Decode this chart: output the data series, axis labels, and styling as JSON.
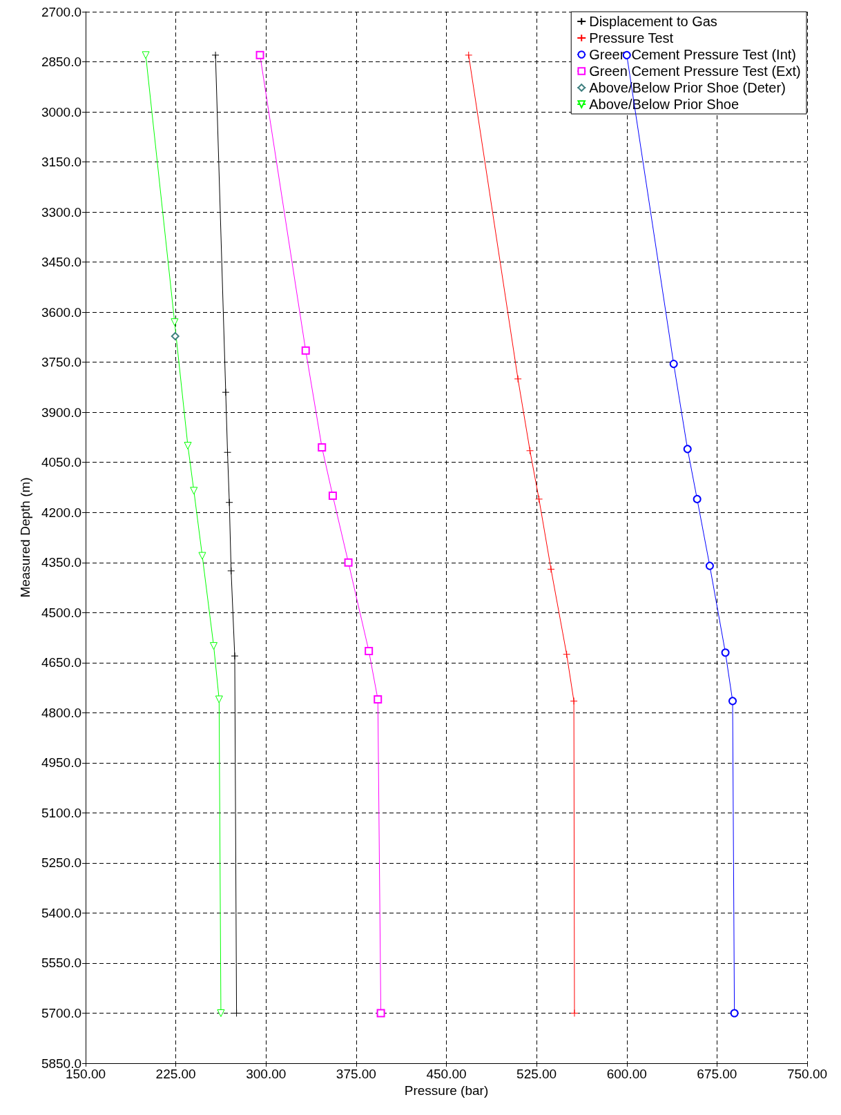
{
  "chart_data": {
    "type": "line",
    "xlabel": "Pressure (bar)",
    "ylabel": "Measured Depth (m)",
    "xlim": [
      150,
      750
    ],
    "xticks": [
      {
        "value": 150,
        "label": "150.00"
      },
      {
        "value": 225,
        "label": "225.00"
      },
      {
        "value": 300,
        "label": "300.00"
      },
      {
        "value": 375,
        "label": "375.00"
      },
      {
        "value": 450,
        "label": "450.00"
      },
      {
        "value": 525,
        "label": "525.00"
      },
      {
        "value": 600,
        "label": "600.00"
      },
      {
        "value": 675,
        "label": "675.00"
      },
      {
        "value": 750,
        "label": "750.00"
      }
    ],
    "ylim": [
      5850,
      2700
    ],
    "yticks": [
      {
        "value": 2700,
        "label": "2700.0"
      },
      {
        "value": 2850,
        "label": "2850.0"
      },
      {
        "value": 3000,
        "label": "3000.0"
      },
      {
        "value": 3150,
        "label": "3150.0"
      },
      {
        "value": 3300,
        "label": "3300.0"
      },
      {
        "value": 3450,
        "label": "3450.0"
      },
      {
        "value": 3600,
        "label": "3600.0"
      },
      {
        "value": 3750,
        "label": "3750.0"
      },
      {
        "value": 3900,
        "label": "3900.0"
      },
      {
        "value": 4050,
        "label": "4050.0"
      },
      {
        "value": 4200,
        "label": "4200.0"
      },
      {
        "value": 4350,
        "label": "4350.0"
      },
      {
        "value": 4500,
        "label": "4500.0"
      },
      {
        "value": 4650,
        "label": "4650.0"
      },
      {
        "value": 4800,
        "label": "4800.0"
      },
      {
        "value": 4950,
        "label": "4950.0"
      },
      {
        "value": 5100,
        "label": "5100.0"
      },
      {
        "value": 5250,
        "label": "5250.0"
      },
      {
        "value": 5400,
        "label": "5400.0"
      },
      {
        "value": 5550,
        "label": "5550.0"
      },
      {
        "value": 5700,
        "label": "5700.0"
      },
      {
        "value": 5850,
        "label": "5850.0"
      }
    ],
    "grid": true,
    "legend": "top right",
    "line_style": "solid",
    "series": [
      {
        "name": "Displacement to Gas",
        "color": "#000000",
        "marker": "cross",
        "x": [
          258,
          266.5,
          268,
          269.5,
          271,
          274,
          275.5
        ],
        "values": [
          2830,
          3840,
          4020,
          4170,
          4375,
          4630,
          5700
        ]
      },
      {
        "name": "Pressure Test",
        "color": "#ff0000",
        "marker": "cross",
        "x": [
          468.5,
          509.5,
          519.5,
          527,
          537,
          550,
          556,
          556.5
        ],
        "values": [
          2830,
          3800,
          4015,
          4160,
          4370,
          4625,
          4765,
          5700
        ]
      },
      {
        "name": "Green Cement Pressure Test (Int)",
        "color": "#0000ff",
        "marker": "circle",
        "x": [
          600,
          639,
          650.5,
          658.5,
          669,
          682,
          688,
          689.5
        ],
        "values": [
          2830,
          3755,
          4010,
          4160,
          4360,
          4620,
          4765,
          5700
        ]
      },
      {
        "name": "Green Cement Pressure Test (Ext)",
        "color": "#ff00ff",
        "marker": "square",
        "x": [
          295,
          333,
          346.5,
          355.5,
          368.5,
          385.5,
          393,
          395.5
        ],
        "values": [
          2830,
          3715,
          4005,
          4150,
          4350,
          4615,
          4760,
          5700
        ]
      },
      {
        "name": "Above/Below Prior Shoe (Deter)",
        "color": "#408080",
        "marker": "diamond",
        "x": [
          224.5
        ],
        "values": [
          3672
        ]
      },
      {
        "name": "Above/Below Prior Shoe",
        "color": "#00ff00",
        "marker": "triangle",
        "x": [
          200,
          224,
          235,
          240,
          247,
          256.5,
          261,
          262.5
        ],
        "values": [
          2830,
          3630,
          4000,
          4135,
          4330,
          4600,
          4760,
          5700
        ]
      }
    ]
  }
}
